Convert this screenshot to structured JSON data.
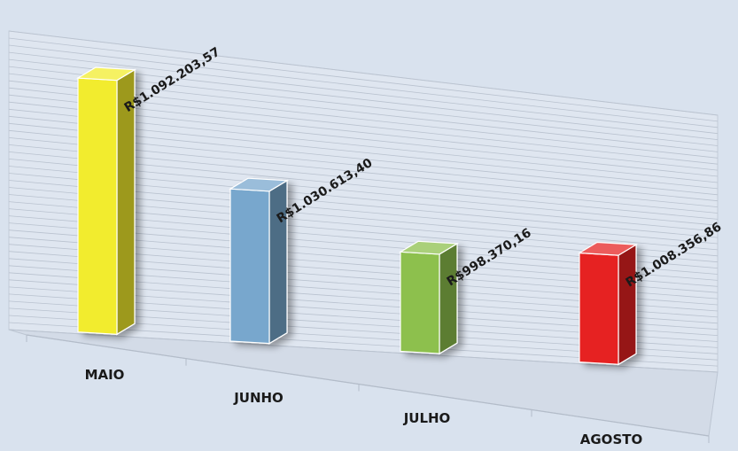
{
  "chart_data": {
    "type": "bar",
    "title": "",
    "xlabel": "",
    "ylabel": "",
    "categories": [
      "MAIO",
      "JUNHO",
      "JULHO",
      "AGOSTO"
    ],
    "values": [
      1092203.57,
      1030613.4,
      998370.16,
      1008356.86
    ],
    "value_labels": [
      "R$1.092.203,57",
      "R$1.030.613,40",
      "R$998.370,16",
      "R$1.008.356,86"
    ],
    "colors": [
      "#f2ec2e",
      "#78a7cd",
      "#8dc04d",
      "#e62424"
    ],
    "ylim": [
      930000,
      1100000
    ],
    "grid": true,
    "legend": "none",
    "style": "3d-column"
  }
}
